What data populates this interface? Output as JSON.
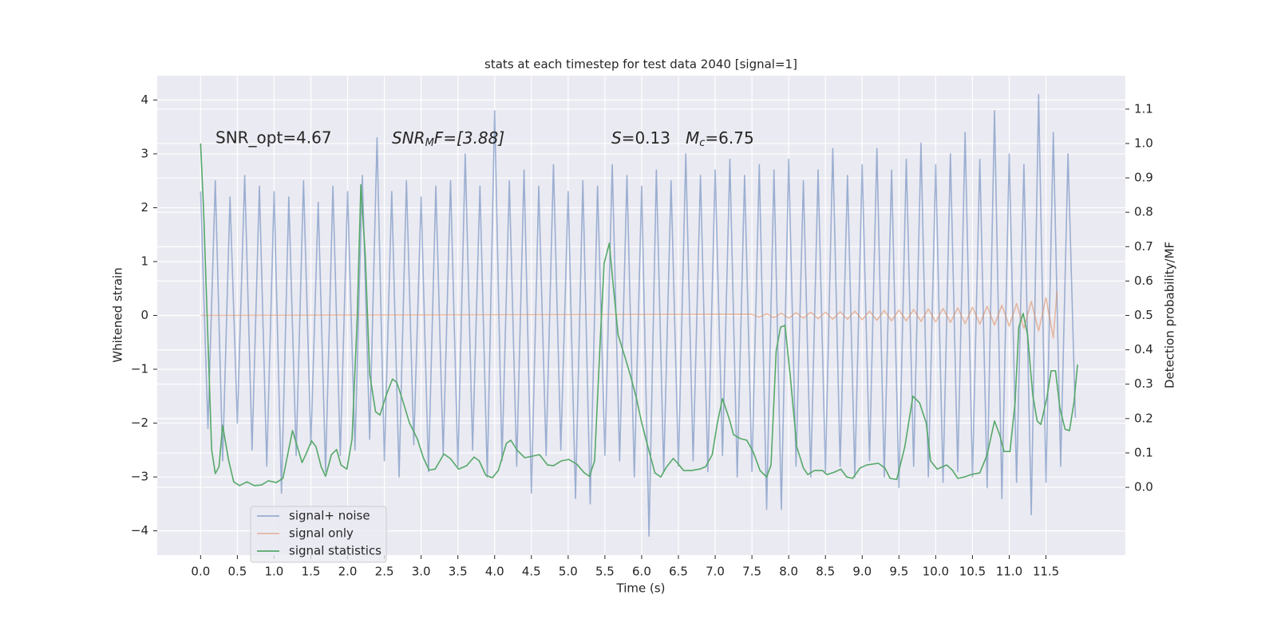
{
  "chart_data": {
    "type": "line",
    "title": "stats at each timestep for test data 2040 [signal=1]",
    "xlabel": "Time (s)",
    "ylabel": "Whitened strain",
    "y2label": "Detection probability/MF",
    "grid": true,
    "legend": "lower left",
    "xlim": [
      -0.59,
      12.58
    ],
    "ylim": [
      -4.45,
      4.45
    ],
    "y2lim": [
      -0.197,
      1.197
    ],
    "xticks": [
      {
        "value": 0,
        "label": "0.0"
      },
      {
        "value": 0.5,
        "label": "0.5"
      },
      {
        "value": 1,
        "label": "1.0"
      },
      {
        "value": 1.5,
        "label": "1.5"
      },
      {
        "value": 2,
        "label": "2.0"
      },
      {
        "value": 2.5,
        "label": "2.5"
      },
      {
        "value": 3,
        "label": "3.0"
      },
      {
        "value": 3.5,
        "label": "3.5"
      },
      {
        "value": 4,
        "label": "4.0"
      },
      {
        "value": 4.5,
        "label": "4.5"
      },
      {
        "value": 5,
        "label": "5.0"
      },
      {
        "value": 5.5,
        "label": "5.5"
      },
      {
        "value": 6,
        "label": "6.0"
      },
      {
        "value": 6.5,
        "label": "6.5"
      },
      {
        "value": 7,
        "label": "7.0"
      },
      {
        "value": 7.5,
        "label": "7.5"
      },
      {
        "value": 8,
        "label": "8.0"
      },
      {
        "value": 8.5,
        "label": "8.5"
      },
      {
        "value": 9,
        "label": "9.0"
      },
      {
        "value": 9.5,
        "label": "9.5"
      },
      {
        "value": 10,
        "label": "10.0"
      },
      {
        "value": 10.5,
        "label": "10.5"
      },
      {
        "value": 11,
        "label": "11.0"
      },
      {
        "value": 11.5,
        "label": "11.5"
      }
    ],
    "yticks": [
      {
        "value": -4,
        "label": "−4"
      },
      {
        "value": -3,
        "label": "−3"
      },
      {
        "value": -2,
        "label": "−2"
      },
      {
        "value": -1,
        "label": "−1"
      },
      0,
      1,
      2,
      3,
      4
    ],
    "y2ticks": [
      {
        "value": 0,
        "label": "0.0"
      },
      {
        "value": 0.1,
        "label": "0.1"
      },
      {
        "value": 0.2,
        "label": "0.2"
      },
      {
        "value": 0.3,
        "label": "0.3"
      },
      {
        "value": 0.4,
        "label": "0.4"
      },
      {
        "value": 0.5,
        "label": "0.5"
      },
      {
        "value": 0.6,
        "label": "0.6"
      },
      {
        "value": 0.7,
        "label": "0.7"
      },
      {
        "value": 0.8,
        "label": "0.8"
      },
      {
        "value": 0.9,
        "label": "0.9"
      },
      {
        "value": 1,
        "label": "1.0"
      },
      {
        "value": 1.1,
        "label": "1.1"
      }
    ],
    "annotations": [
      [
        "SNR_opt=4.67"
      ],
      [
        "SNR",
        "M",
        "F=[3.88]"
      ],
      [
        "S",
        "=0.13"
      ],
      [
        "M",
        "c",
        "=6.75"
      ]
    ],
    "series": [
      {
        "name": "signal+ noise",
        "color": "#4c72b0",
        "alpha": 0.5,
        "x": [
          0.0,
          0.1,
          0.2,
          0.3,
          0.4,
          0.5,
          0.6,
          0.7,
          0.8,
          0.9,
          1.0,
          1.1,
          1.2,
          1.3,
          1.4,
          1.5,
          1.6,
          1.7,
          1.8,
          1.9,
          2.0,
          2.1,
          2.2,
          2.3,
          2.4,
          2.5,
          2.6,
          2.7,
          2.8,
          2.9,
          3.0,
          3.1,
          3.2,
          3.3,
          3.4,
          3.5,
          3.6,
          3.7,
          3.8,
          3.9,
          4.0,
          4.1,
          4.2,
          4.3,
          4.4,
          4.5,
          4.6,
          4.7,
          4.8,
          4.9,
          5.0,
          5.1,
          5.2,
          5.3,
          5.4,
          5.5,
          5.6,
          5.7,
          5.8,
          5.9,
          6.0,
          6.1,
          6.2,
          6.3,
          6.4,
          6.5,
          6.6,
          6.7,
          6.8,
          6.9,
          7.0,
          7.1,
          7.2,
          7.3,
          7.4,
          7.5,
          7.6,
          7.7,
          7.8,
          7.9,
          8.0,
          8.1,
          8.2,
          8.3,
          8.4,
          8.5,
          8.6,
          8.7,
          8.8,
          8.9,
          9.0,
          9.1,
          9.2,
          9.3,
          9.4,
          9.5,
          9.6,
          9.7,
          9.8,
          9.9,
          10.0,
          10.1,
          10.2,
          10.3,
          10.4,
          10.5,
          10.6,
          10.7,
          10.8,
          10.9,
          11.0,
          11.1,
          11.2,
          11.3,
          11.4,
          11.5,
          11.6,
          11.7,
          11.8,
          11.9
        ],
        "values": [
          2.3,
          -2.1,
          2.5,
          -2.7,
          2.2,
          -2.0,
          2.6,
          -2.5,
          2.4,
          -2.8,
          2.3,
          -3.3,
          2.2,
          -2.6,
          2.5,
          -2.4,
          2.1,
          -2.9,
          2.4,
          -2.6,
          2.3,
          -2.5,
          2.6,
          -2.3,
          3.3,
          -2.7,
          2.3,
          -3.0,
          2.5,
          -2.4,
          2.2,
          -2.9,
          2.4,
          -2.6,
          2.5,
          -2.8,
          3.0,
          -2.5,
          2.4,
          -3.0,
          3.8,
          -2.7,
          2.5,
          -2.8,
          2.7,
          -3.3,
          2.4,
          -2.6,
          2.8,
          -2.5,
          2.3,
          -3.4,
          2.5,
          -3.5,
          2.4,
          -2.6,
          2.8,
          -2.7,
          2.6,
          -3.0,
          2.4,
          -4.1,
          2.7,
          -2.9,
          2.5,
          -2.8,
          3.0,
          -2.7,
          2.6,
          -2.9,
          2.7,
          -2.6,
          2.9,
          -3.0,
          2.6,
          -2.9,
          2.8,
          -3.6,
          2.7,
          -3.6,
          2.9,
          -2.8,
          2.5,
          -3.0,
          2.7,
          -2.9,
          3.1,
          -2.8,
          2.6,
          -3.0,
          2.8,
          -2.7,
          3.1,
          -3.0,
          2.7,
          -3.2,
          2.9,
          -2.8,
          3.2,
          -3.0,
          2.8,
          -3.1,
          3.0,
          -2.9,
          3.4,
          -3.0,
          2.9,
          -3.2,
          3.8,
          -3.4,
          3.0,
          -3.1,
          2.8,
          -3.7,
          4.1,
          -3.1,
          3.4,
          -2.8,
          3.0,
          -1.9
        ]
      },
      {
        "name": "signal only",
        "color": "#dd8452",
        "alpha": 0.5,
        "x": [
          0.0,
          7.5,
          7.6,
          7.7,
          7.8,
          7.9,
          8.0,
          8.1,
          8.2,
          8.3,
          8.4,
          8.5,
          8.6,
          8.7,
          8.8,
          8.9,
          9.0,
          9.1,
          9.2,
          9.3,
          9.4,
          9.5,
          9.6,
          9.7,
          9.8,
          9.9,
          10.0,
          10.1,
          10.2,
          10.3,
          10.4,
          10.5,
          10.6,
          10.7,
          10.8,
          10.9,
          11.0,
          11.1,
          11.2,
          11.3,
          11.4,
          11.5,
          11.6,
          11.65
        ],
        "values": [
          0,
          0.02,
          -0.03,
          0.03,
          -0.04,
          0.04,
          -0.05,
          0.05,
          -0.05,
          0.06,
          -0.06,
          0.06,
          -0.07,
          0.07,
          -0.07,
          0.08,
          -0.08,
          0.08,
          -0.09,
          0.09,
          -0.1,
          0.1,
          -0.1,
          0.11,
          -0.11,
          0.12,
          -0.12,
          0.13,
          -0.13,
          0.14,
          -0.15,
          0.15,
          -0.16,
          0.17,
          -0.18,
          0.19,
          -0.2,
          0.22,
          -0.24,
          0.26,
          -0.29,
          0.33,
          -0.42,
          0.45
        ]
      },
      {
        "name": "signal statistics",
        "color": "#55a868",
        "axis": "y2",
        "x": [
          0.0,
          0.04,
          0.12,
          0.15,
          0.2,
          0.25,
          0.3,
          0.38,
          0.45,
          0.53,
          0.63,
          0.73,
          0.83,
          0.92,
          1.03,
          1.12,
          1.25,
          1.38,
          1.43,
          1.51,
          1.57,
          1.64,
          1.7,
          1.78,
          1.85,
          1.91,
          1.99,
          2.06,
          2.13,
          2.18,
          2.24,
          2.3,
          2.38,
          2.44,
          2.52,
          2.61,
          2.67,
          2.76,
          2.84,
          2.95,
          3.03,
          3.11,
          3.19,
          3.31,
          3.4,
          3.51,
          3.62,
          3.72,
          3.79,
          3.88,
          3.97,
          4.05,
          4.16,
          4.22,
          4.31,
          4.41,
          4.5,
          4.61,
          4.72,
          4.8,
          4.91,
          5.01,
          5.12,
          5.22,
          5.29,
          5.36,
          5.44,
          5.49,
          5.56,
          5.61,
          5.68,
          5.78,
          5.85,
          5.93,
          6.0,
          6.09,
          6.18,
          6.26,
          6.34,
          6.43,
          6.49,
          6.57,
          6.68,
          6.79,
          6.87,
          6.96,
          7.03,
          7.1,
          7.19,
          7.25,
          7.34,
          7.43,
          7.52,
          7.61,
          7.7,
          7.76,
          7.83,
          7.89,
          7.95,
          8.02,
          8.11,
          8.2,
          8.26,
          8.35,
          8.46,
          8.52,
          8.62,
          8.71,
          8.79,
          8.87,
          8.97,
          9.06,
          9.22,
          9.31,
          9.38,
          9.47,
          9.58,
          9.69,
          9.78,
          9.87,
          9.93,
          10.02,
          10.15,
          10.23,
          10.3,
          10.39,
          10.48,
          10.6,
          10.7,
          10.8,
          10.87,
          10.93,
          11.01,
          11.08,
          11.13,
          11.19,
          11.25,
          11.32,
          11.38,
          11.43,
          11.51,
          11.57,
          11.63,
          11.69,
          11.76,
          11.82,
          11.88,
          11.93
        ],
        "values": [
          1.0,
          0.81,
          0.3,
          0.11,
          0.04,
          0.06,
          0.18,
          0.08,
          0.016,
          0.005,
          0.016,
          0.005,
          0.007,
          0.019,
          0.014,
          0.026,
          0.165,
          0.072,
          0.095,
          0.135,
          0.118,
          0.06,
          0.032,
          0.095,
          0.11,
          0.065,
          0.053,
          0.14,
          0.49,
          0.88,
          0.675,
          0.33,
          0.22,
          0.21,
          0.265,
          0.315,
          0.305,
          0.245,
          0.188,
          0.14,
          0.086,
          0.05,
          0.053,
          0.097,
          0.083,
          0.053,
          0.063,
          0.088,
          0.077,
          0.035,
          0.028,
          0.049,
          0.128,
          0.137,
          0.107,
          0.086,
          0.09,
          0.095,
          0.065,
          0.063,
          0.077,
          0.081,
          0.067,
          0.042,
          0.032,
          0.077,
          0.443,
          0.652,
          0.71,
          0.594,
          0.443,
          0.374,
          0.323,
          0.258,
          0.188,
          0.114,
          0.042,
          0.03,
          0.06,
          0.084,
          0.07,
          0.049,
          0.049,
          0.053,
          0.06,
          0.095,
          0.188,
          0.258,
          0.2,
          0.153,
          0.142,
          0.137,
          0.102,
          0.049,
          0.03,
          0.065,
          0.397,
          0.466,
          0.471,
          0.327,
          0.118,
          0.056,
          0.037,
          0.049,
          0.049,
          0.037,
          0.044,
          0.053,
          0.03,
          0.026,
          0.056,
          0.065,
          0.07,
          0.056,
          0.026,
          0.023,
          0.118,
          0.265,
          0.246,
          0.188,
          0.077,
          0.053,
          0.065,
          0.049,
          0.026,
          0.03,
          0.037,
          0.042,
          0.095,
          0.193,
          0.153,
          0.104,
          0.104,
          0.246,
          0.466,
          0.506,
          0.443,
          0.269,
          0.193,
          0.183,
          0.258,
          0.339,
          0.339,
          0.23,
          0.169,
          0.165,
          0.246,
          0.357
        ]
      }
    ]
  }
}
